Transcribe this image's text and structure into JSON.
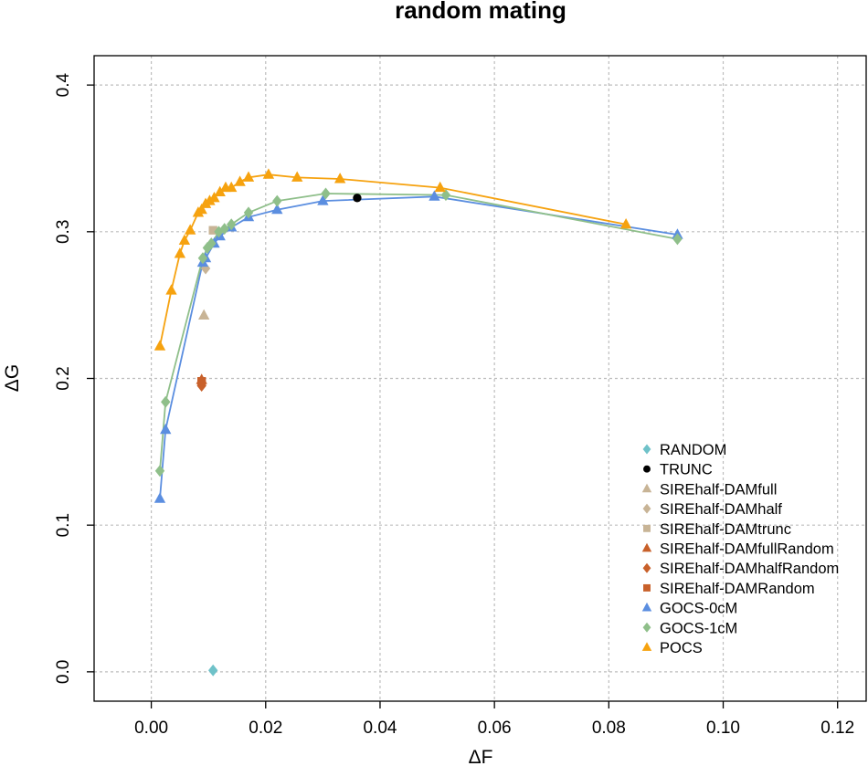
{
  "chart_data": {
    "type": "scatter",
    "title": "random mating",
    "xlabel": "ΔF",
    "ylabel": "ΔG",
    "xlim": [
      -0.01,
      0.125
    ],
    "ylim": [
      -0.02,
      0.42
    ],
    "xticks": [
      0.0,
      0.02,
      0.04,
      0.06,
      0.08,
      0.1,
      0.12
    ],
    "xtick_labels": [
      "0.00",
      "0.02",
      "0.04",
      "0.06",
      "0.08",
      "0.10",
      "0.12"
    ],
    "yticks": [
      0.0,
      0.1,
      0.2,
      0.3,
      0.4
    ],
    "ytick_labels": [
      "0.0",
      "0.1",
      "0.2",
      "0.3",
      "0.4"
    ],
    "grid": true,
    "legend_position": "bottom-right",
    "series": [
      {
        "name": "RANDOM",
        "color": "#6fc2c9",
        "marker": "diamond",
        "line": false,
        "points": [
          [
            0.0108,
            0.001
          ]
        ]
      },
      {
        "name": "TRUNC",
        "color": "#000000",
        "marker": "circle",
        "line": false,
        "points": [
          [
            0.036,
            0.323
          ]
        ]
      },
      {
        "name": "SIREhalf-DAMfull",
        "color": "#c8b496",
        "marker": "triangle",
        "line": false,
        "points": [
          [
            0.0092,
            0.243
          ]
        ]
      },
      {
        "name": "SIREhalf-DAMhalf",
        "color": "#c8b496",
        "marker": "diamond",
        "line": false,
        "points": [
          [
            0.0095,
            0.275
          ]
        ]
      },
      {
        "name": "SIREhalf-DAMtrunc",
        "color": "#c8b496",
        "marker": "square",
        "line": false,
        "points": [
          [
            0.0108,
            0.301
          ]
        ]
      },
      {
        "name": "SIREhalf-DAMfullRandom",
        "color": "#c8602a",
        "marker": "triangle",
        "line": false,
        "points": [
          [
            0.0088,
            0.199
          ]
        ]
      },
      {
        "name": "SIREhalf-DAMhalfRandom",
        "color": "#c8602a",
        "marker": "diamond",
        "line": false,
        "points": [
          [
            0.0088,
            0.195
          ]
        ]
      },
      {
        "name": "SIREhalf-DAMRandom",
        "color": "#c8602a",
        "marker": "square",
        "line": false,
        "points": [
          [
            0.0088,
            0.198
          ]
        ]
      },
      {
        "name": "GOCS-0cM",
        "color": "#5b8ee0",
        "marker": "triangle",
        "line": true,
        "points": [
          [
            0.0015,
            0.118
          ],
          [
            0.0025,
            0.165
          ],
          [
            0.009,
            0.279
          ],
          [
            0.0095,
            0.282
          ],
          [
            0.011,
            0.292
          ],
          [
            0.012,
            0.297
          ],
          [
            0.014,
            0.303
          ],
          [
            0.017,
            0.31
          ],
          [
            0.022,
            0.315
          ],
          [
            0.03,
            0.321
          ],
          [
            0.0495,
            0.324
          ],
          [
            0.092,
            0.298
          ]
        ]
      },
      {
        "name": "GOCS-1cM",
        "color": "#8fbf8a",
        "marker": "diamond",
        "line": true,
        "points": [
          [
            0.0015,
            0.137
          ],
          [
            0.0025,
            0.184
          ],
          [
            0.009,
            0.282
          ],
          [
            0.0098,
            0.289
          ],
          [
            0.0105,
            0.292
          ],
          [
            0.0118,
            0.3
          ],
          [
            0.0128,
            0.302
          ],
          [
            0.014,
            0.305
          ],
          [
            0.017,
            0.313
          ],
          [
            0.022,
            0.321
          ],
          [
            0.0305,
            0.326
          ],
          [
            0.0515,
            0.325
          ],
          [
            0.092,
            0.295
          ]
        ]
      },
      {
        "name": "POCS",
        "color": "#f6a20f",
        "marker": "triangle",
        "line": true,
        "points": [
          [
            0.0015,
            0.222
          ],
          [
            0.0035,
            0.26
          ],
          [
            0.005,
            0.285
          ],
          [
            0.0058,
            0.294
          ],
          [
            0.0068,
            0.301
          ],
          [
            0.0082,
            0.313
          ],
          [
            0.0088,
            0.315
          ],
          [
            0.0095,
            0.319
          ],
          [
            0.0102,
            0.321
          ],
          [
            0.011,
            0.323
          ],
          [
            0.012,
            0.327
          ],
          [
            0.013,
            0.33
          ],
          [
            0.014,
            0.33
          ],
          [
            0.0155,
            0.334
          ],
          [
            0.017,
            0.337
          ],
          [
            0.0205,
            0.339
          ],
          [
            0.0255,
            0.337
          ],
          [
            0.033,
            0.336
          ],
          [
            0.0505,
            0.33
          ],
          [
            0.083,
            0.305
          ]
        ]
      }
    ]
  }
}
